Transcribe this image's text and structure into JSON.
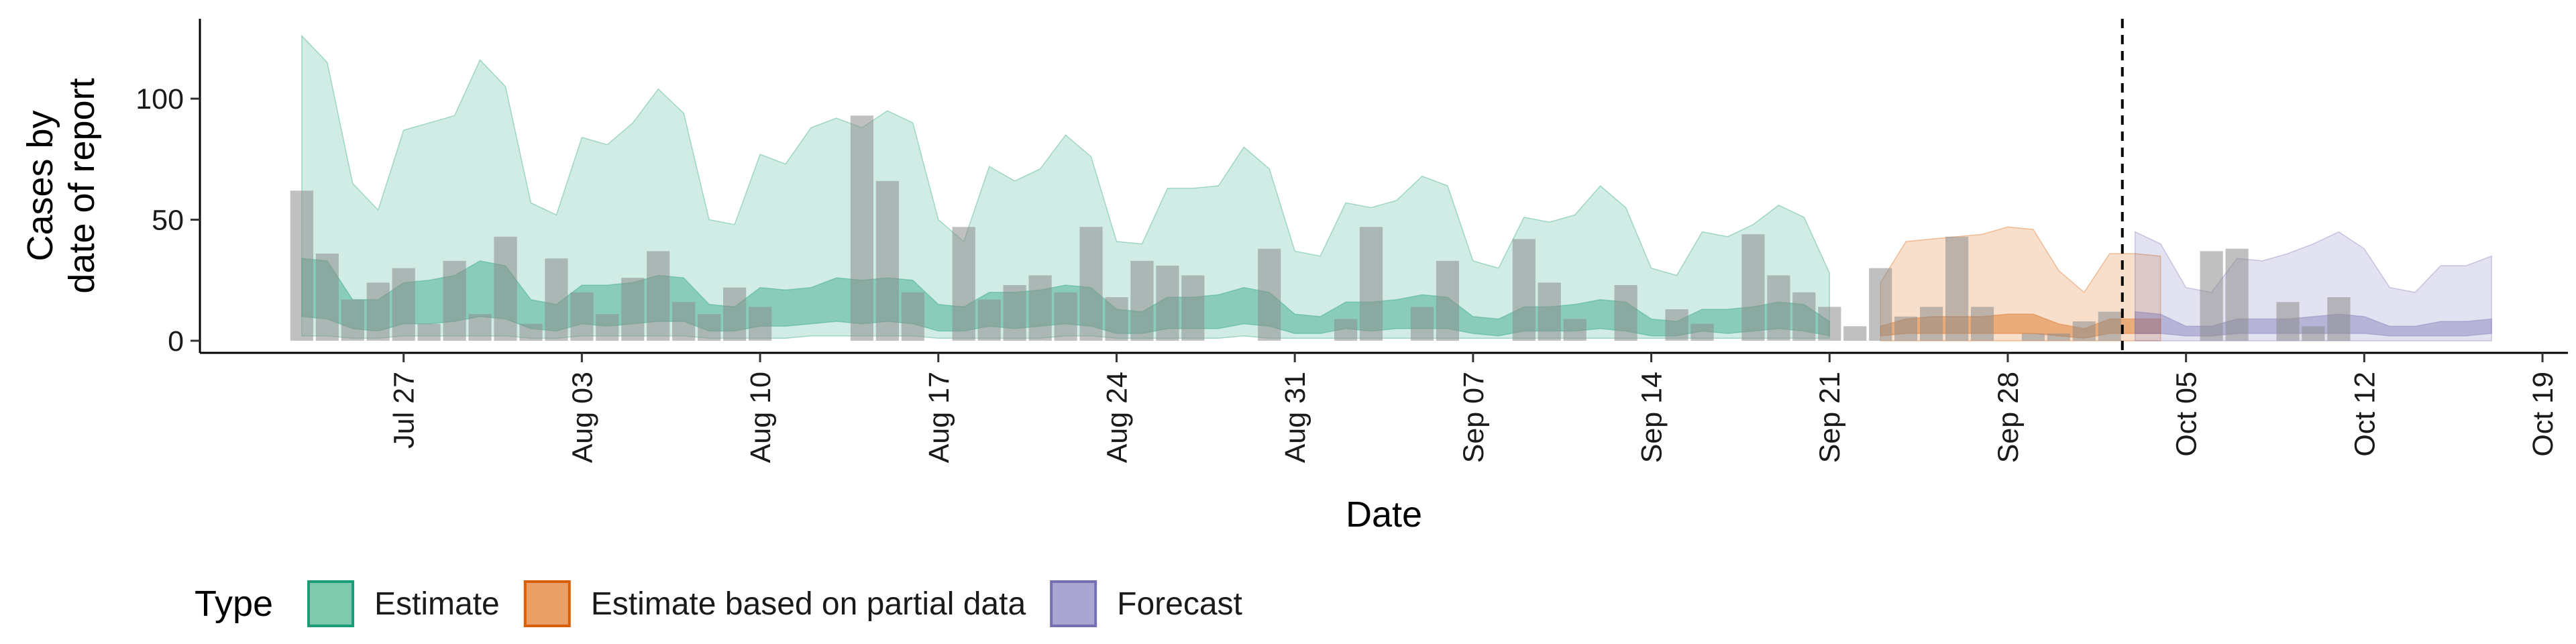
{
  "chart_data": {
    "type": "area",
    "xlabel": "Date",
    "ylabel_lines": [
      "Cases by",
      "date of report"
    ],
    "ylim": [
      -5,
      133
    ],
    "xlim": [
      "2020-07-19",
      "2020-10-20"
    ],
    "y_ticks": [
      0,
      50,
      100
    ],
    "x_ticks": [
      {
        "date": "2020-07-27",
        "label": "Jul 27"
      },
      {
        "date": "2020-08-03",
        "label": "Aug 03"
      },
      {
        "date": "2020-08-10",
        "label": "Aug 10"
      },
      {
        "date": "2020-08-17",
        "label": "Aug 17"
      },
      {
        "date": "2020-08-24",
        "label": "Aug 24"
      },
      {
        "date": "2020-08-31",
        "label": "Aug 31"
      },
      {
        "date": "2020-09-07",
        "label": "Sep 07"
      },
      {
        "date": "2020-09-14",
        "label": "Sep 14"
      },
      {
        "date": "2020-09-21",
        "label": "Sep 21"
      },
      {
        "date": "2020-09-28",
        "label": "Sep 28"
      },
      {
        "date": "2020-10-05",
        "label": "Oct 05"
      },
      {
        "date": "2020-10-12",
        "label": "Oct 12"
      },
      {
        "date": "2020-10-19",
        "label": "Oct 19"
      }
    ],
    "forecast_date": "2020-10-02",
    "grid": false,
    "legend": {
      "position": "bottom",
      "title": "Type",
      "entries": [
        {
          "name": "Estimate",
          "fill": "#7fc9ae",
          "stroke": "#1b9e77"
        },
        {
          "name": "Estimate based on partial data",
          "fill": "#ea9f66",
          "stroke": "#d95f02"
        },
        {
          "name": "Forecast",
          "fill": "#aaa6d1",
          "stroke": "#7570b3"
        }
      ]
    },
    "colors": {
      "estimate": "#1b9e77",
      "partial": "#d95f02",
      "forecast": "#7570b3",
      "bars": "#8c8c8c"
    },
    "bars": {
      "start": "2020-07-23",
      "values": [
        62,
        36,
        17,
        24,
        30,
        7,
        33,
        11,
        43,
        7,
        34,
        20,
        11,
        26,
        37,
        16,
        11,
        22,
        14,
        0,
        0,
        0,
        93,
        66,
        20,
        0,
        47,
        17,
        23,
        27,
        20,
        47,
        18,
        33,
        31,
        27,
        0,
        0,
        38,
        0,
        0,
        9,
        47,
        0,
        14,
        33,
        0,
        0,
        42,
        24,
        9,
        0,
        23,
        0,
        13,
        7,
        0,
        44,
        27,
        20,
        14,
        6,
        30,
        10,
        14,
        43,
        14,
        0,
        3,
        3,
        8,
        12,
        0,
        0,
        0,
        37,
        38,
        0,
        16,
        6,
        18
      ]
    },
    "series": [
      {
        "name": "Estimate",
        "start": "2020-07-23",
        "upper_outer": [
          126,
          115,
          65,
          54,
          87,
          90,
          93,
          116,
          105,
          57,
          52,
          84,
          81,
          90,
          104,
          94,
          50,
          48,
          77,
          73,
          88,
          92,
          88,
          95,
          90,
          50,
          41,
          72,
          66,
          71,
          85,
          76,
          41,
          40,
          63,
          63,
          64,
          80,
          71,
          37,
          35,
          57,
          55,
          58,
          68,
          64,
          33,
          30,
          51,
          49,
          52,
          64,
          55,
          30,
          27,
          45,
          43,
          48,
          56,
          51,
          28
        ],
        "upper_inner": [
          34,
          33,
          17,
          17,
          24,
          25,
          27,
          33,
          31,
          17,
          15,
          23,
          23,
          24,
          27,
          26,
          15,
          14,
          22,
          21,
          22,
          26,
          25,
          26,
          25,
          15,
          14,
          20,
          20,
          21,
          23,
          22,
          13,
          12,
          18,
          18,
          19,
          22,
          20,
          11,
          10,
          16,
          16,
          17,
          19,
          18,
          10,
          9,
          14,
          14,
          15,
          17,
          16,
          9,
          8,
          13,
          13,
          14,
          16,
          15,
          8
        ],
        "lower_inner": [
          10,
          9,
          5,
          4,
          7,
          7,
          8,
          10,
          9,
          5,
          4,
          7,
          6,
          7,
          8,
          8,
          4,
          4,
          6,
          6,
          7,
          8,
          7,
          8,
          7,
          4,
          4,
          6,
          5,
          6,
          7,
          6,
          3,
          3,
          5,
          5,
          5,
          7,
          6,
          3,
          3,
          5,
          4,
          5,
          5,
          5,
          3,
          2,
          4,
          4,
          4,
          5,
          4,
          2,
          2,
          4,
          3,
          4,
          5,
          4,
          2
        ],
        "lower_outer": [
          2,
          2,
          1,
          1,
          2,
          2,
          2,
          2,
          2,
          1,
          1,
          2,
          2,
          2,
          2,
          2,
          1,
          1,
          1,
          1,
          2,
          2,
          2,
          2,
          2,
          1,
          1,
          1,
          1,
          1,
          2,
          2,
          1,
          1,
          1,
          1,
          1,
          2,
          1,
          1,
          1,
          1,
          1,
          1,
          1,
          1,
          1,
          1,
          1,
          1,
          1,
          1,
          1,
          1,
          1,
          1,
          1,
          1,
          1,
          1,
          1
        ]
      },
      {
        "name": "Estimate based on partial data",
        "start": "2020-09-23",
        "upper_outer": [
          24,
          41,
          42,
          43,
          44,
          47,
          46,
          29,
          20,
          36,
          36,
          35
        ],
        "upper_inner": [
          6,
          9,
          10,
          10,
          10,
          11,
          11,
          7,
          5,
          9,
          9,
          9
        ],
        "lower_inner": [
          2,
          3,
          3,
          3,
          3,
          3,
          3,
          2,
          1,
          3,
          3,
          3
        ],
        "lower_outer": [
          0,
          0,
          0,
          0,
          0,
          0,
          0,
          0,
          0,
          0,
          0,
          0
        ]
      },
      {
        "name": "Forecast",
        "start": "2020-10-03",
        "upper_outer": [
          45,
          40,
          22,
          20,
          34,
          33,
          36,
          40,
          45,
          38,
          22,
          20,
          31,
          31,
          35
        ],
        "upper_inner": [
          12,
          11,
          6,
          6,
          9,
          9,
          9,
          10,
          11,
          10,
          6,
          6,
          8,
          8,
          9
        ],
        "lower_inner": [
          3,
          3,
          2,
          2,
          3,
          3,
          3,
          3,
          3,
          3,
          2,
          2,
          2,
          2,
          3
        ],
        "lower_outer": [
          0,
          0,
          0,
          0,
          0,
          0,
          0,
          0,
          0,
          0,
          0,
          0,
          0,
          0,
          0
        ]
      }
    ]
  }
}
